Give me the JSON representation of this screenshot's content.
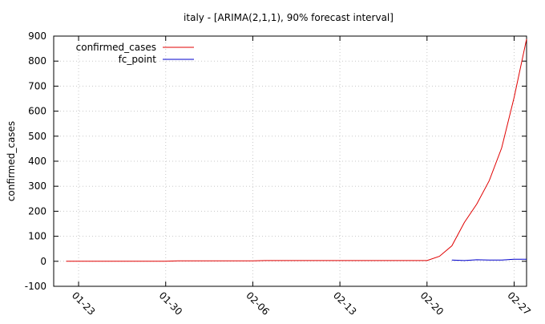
{
  "chart_data": {
    "type": "line",
    "title": "italy -  [ARIMA(2,1,1), 90% forecast interval]",
    "xlabel": "",
    "ylabel": "confirmed_cases",
    "xlim": [
      "2020-01-21",
      "2020-02-28"
    ],
    "ylim": [
      -100,
      900
    ],
    "x_ticks": [
      "2020-01-23",
      "2020-01-30",
      "2020-02-06",
      "2020-02-13",
      "2020-02-20",
      "2020-02-27"
    ],
    "x_tick_labels": [
      "01-23",
      "01-30",
      "02-06",
      "02-13",
      "02-20",
      "02-27"
    ],
    "y_ticks": [
      -100,
      0,
      100,
      200,
      300,
      400,
      500,
      600,
      700,
      800,
      900
    ],
    "grid": true,
    "legend_position": "top-left",
    "series": [
      {
        "name": "confirmed_cases",
        "color": "#e00000",
        "x": [
          "2020-01-22",
          "2020-01-23",
          "2020-01-24",
          "2020-01-25",
          "2020-01-26",
          "2020-01-27",
          "2020-01-28",
          "2020-01-29",
          "2020-01-30",
          "2020-01-31",
          "2020-02-01",
          "2020-02-02",
          "2020-02-03",
          "2020-02-04",
          "2020-02-05",
          "2020-02-06",
          "2020-02-07",
          "2020-02-08",
          "2020-02-09",
          "2020-02-10",
          "2020-02-11",
          "2020-02-12",
          "2020-02-13",
          "2020-02-14",
          "2020-02-15",
          "2020-02-16",
          "2020-02-17",
          "2020-02-18",
          "2020-02-19",
          "2020-02-20",
          "2020-02-21",
          "2020-02-22",
          "2020-02-23",
          "2020-02-24",
          "2020-02-25",
          "2020-02-26",
          "2020-02-27",
          "2020-02-28"
        ],
        "y": [
          0,
          0,
          0,
          0,
          0,
          0,
          0,
          0,
          0,
          2,
          2,
          2,
          2,
          2,
          2,
          2,
          3,
          3,
          3,
          3,
          3,
          3,
          3,
          3,
          3,
          3,
          3,
          3,
          3,
          3,
          20,
          62,
          155,
          229,
          322,
          453,
          655,
          888
        ]
      },
      {
        "name": "fc_point",
        "color": "#0000cc",
        "x": [
          "2020-02-22",
          "2020-02-23",
          "2020-02-24",
          "2020-02-25",
          "2020-02-26",
          "2020-02-27",
          "2020-02-28"
        ],
        "y": [
          5,
          3,
          6,
          5,
          5,
          8,
          8
        ]
      }
    ]
  }
}
